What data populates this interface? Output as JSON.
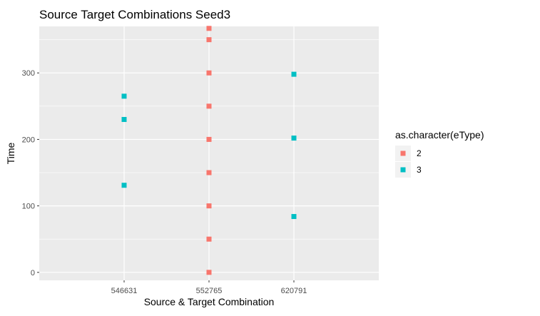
{
  "chart_data": {
    "type": "scatter",
    "title": "Source Target Combinations Seed3",
    "xlabel": "Source & Target Combination",
    "ylabel": "Time",
    "categories": [
      "546631",
      "552765",
      "620791"
    ],
    "ylim": [
      -12,
      370
    ],
    "yticks": [
      0,
      100,
      200,
      300
    ],
    "grid": true,
    "legend": {
      "title": "as.character(eType)",
      "placement": "right",
      "entries": [
        "2",
        "3"
      ]
    },
    "series": [
      {
        "name": "2",
        "color": "#F8766D",
        "points": [
          {
            "x": "552765",
            "y": 0
          },
          {
            "x": "552765",
            "y": 50
          },
          {
            "x": "552765",
            "y": 100
          },
          {
            "x": "552765",
            "y": 150
          },
          {
            "x": "552765",
            "y": 200
          },
          {
            "x": "552765",
            "y": 250
          },
          {
            "x": "552765",
            "y": 300
          },
          {
            "x": "552765",
            "y": 350
          },
          {
            "x": "552765",
            "y": 367
          }
        ]
      },
      {
        "name": "3",
        "color": "#00BFC4",
        "points": [
          {
            "x": "546631",
            "y": 265
          },
          {
            "x": "546631",
            "y": 230
          },
          {
            "x": "546631",
            "y": 131
          },
          {
            "x": "620791",
            "y": 298
          },
          {
            "x": "620791",
            "y": 202
          },
          {
            "x": "620791",
            "y": 84
          }
        ]
      }
    ]
  }
}
